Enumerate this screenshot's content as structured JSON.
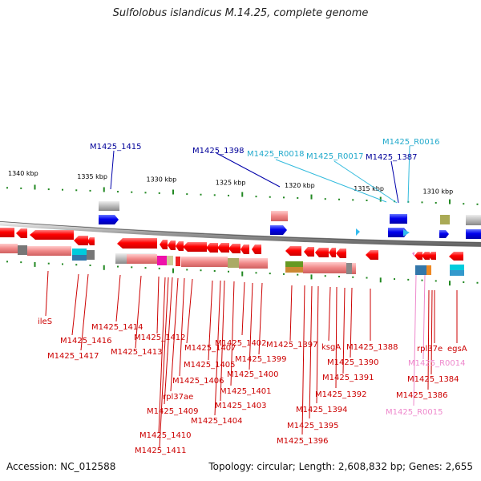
{
  "title": "Sulfolobus islandicus M.14.25, complete genome",
  "footer": {
    "accession": "Accession: NC_012588",
    "summary": "Topology: circular; Length: 2,608,832 bp; Genes: 2,655"
  },
  "colors": {
    "cds_forward": "#ff0000",
    "cds_reverse": "#ff0000",
    "rna_blue": "#0000cc",
    "rna_cyan": "#33bbdd",
    "pink_label": "#ee88cc",
    "label_red": "#cc0000",
    "label_blue": "#000099",
    "label_cyan": "#22aacc"
  },
  "scale": {
    "ticks": [
      {
        "label": "1340 kbp",
        "kbp": 1340
      },
      {
        "label": "1335 kbp",
        "kbp": 1335
      },
      {
        "label": "1330 kbp",
        "kbp": 1330
      },
      {
        "label": "1325 kbp",
        "kbp": 1325
      },
      {
        "label": "1320 kbp",
        "kbp": 1320
      },
      {
        "label": "1315 kbp",
        "kbp": 1315
      },
      {
        "label": "1310 kbp",
        "kbp": 1310
      }
    ]
  },
  "top_labels": [
    {
      "text": "M1425_1415",
      "tone": "blue"
    },
    {
      "text": "M1425_1398",
      "tone": "blue"
    },
    {
      "text": "M1425_R0018",
      "tone": "cyan"
    },
    {
      "text": "M1425_R0017",
      "tone": "cyan"
    },
    {
      "text": "M1425_R0016",
      "tone": "cyan"
    },
    {
      "text": "M1425_1387",
      "tone": "blue"
    }
  ],
  "bottom_labels": [
    {
      "text": "ileS",
      "tone": "red"
    },
    {
      "text": "M1425_1416",
      "tone": "red"
    },
    {
      "text": "M1425_1417",
      "tone": "red"
    },
    {
      "text": "M1425_1414",
      "tone": "red"
    },
    {
      "text": "M1425_1413",
      "tone": "red"
    },
    {
      "text": "M1425_1412",
      "tone": "red"
    },
    {
      "text": "M1425_1407",
      "tone": "red"
    },
    {
      "text": "M1425_1405",
      "tone": "red"
    },
    {
      "text": "M1425_1406",
      "tone": "red"
    },
    {
      "text": "rpl37ae",
      "tone": "red"
    },
    {
      "text": "M1425_1409",
      "tone": "red"
    },
    {
      "text": "M1425_1410",
      "tone": "red"
    },
    {
      "text": "M1425_1411",
      "tone": "red"
    },
    {
      "text": "M1425_1402",
      "tone": "red"
    },
    {
      "text": "M1425_1399",
      "tone": "red"
    },
    {
      "text": "M1425_1400",
      "tone": "red"
    },
    {
      "text": "M1425_1401",
      "tone": "red"
    },
    {
      "text": "M1425_1403",
      "tone": "red"
    },
    {
      "text": "M1425_1404",
      "tone": "red"
    },
    {
      "text": "M1425_1397",
      "tone": "red"
    },
    {
      "text": "ksgA",
      "tone": "red"
    },
    {
      "text": "M1425_1388",
      "tone": "red"
    },
    {
      "text": "M1425_1390",
      "tone": "red"
    },
    {
      "text": "M1425_1391",
      "tone": "red"
    },
    {
      "text": "M1425_1392",
      "tone": "red"
    },
    {
      "text": "M1425_1394",
      "tone": "red"
    },
    {
      "text": "M1425_1395",
      "tone": "red"
    },
    {
      "text": "M1425_1396",
      "tone": "red"
    },
    {
      "text": "rpl37e",
      "tone": "red"
    },
    {
      "text": "egsA",
      "tone": "red"
    },
    {
      "text": "M1425_R0014",
      "tone": "pink"
    },
    {
      "text": "M1425_1384",
      "tone": "red"
    },
    {
      "text": "M1425_1386",
      "tone": "red"
    },
    {
      "text": "M1425_R0015",
      "tone": "pink"
    }
  ]
}
